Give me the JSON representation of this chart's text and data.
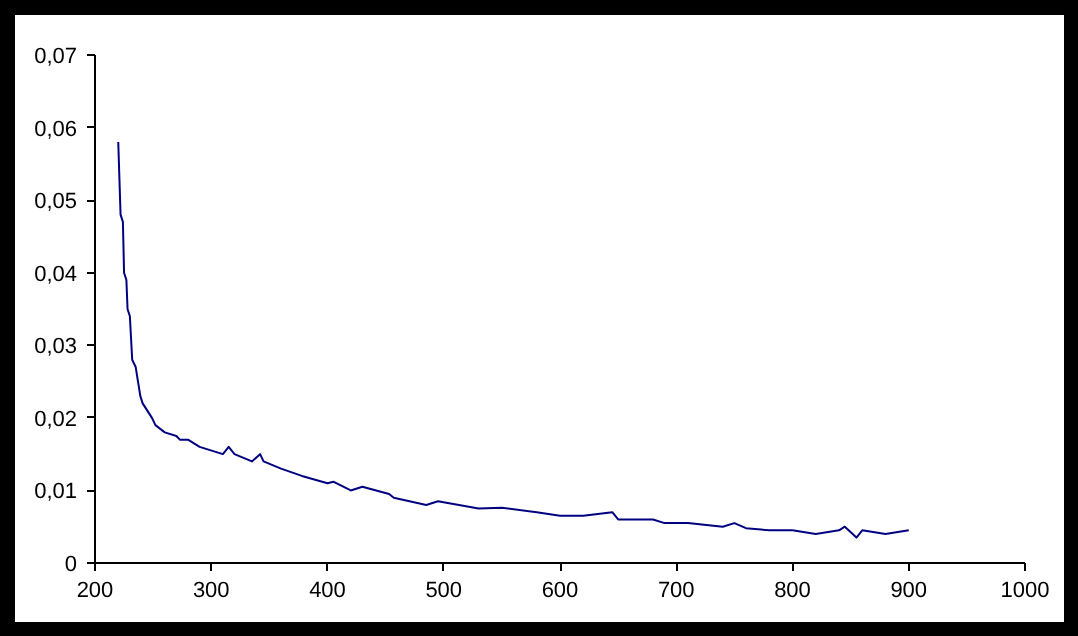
{
  "chart_data": {
    "type": "line",
    "x": [
      220,
      221,
      222,
      224,
      225,
      227,
      228,
      230,
      231,
      232,
      235,
      237,
      239,
      241,
      245,
      249,
      252,
      260,
      270,
      273,
      280,
      290,
      310,
      315,
      320,
      335,
      342,
      345,
      360,
      378,
      400,
      405,
      420,
      430,
      453,
      457,
      485,
      495,
      530,
      550,
      580,
      600,
      620,
      645,
      650,
      680,
      690,
      710,
      740,
      750,
      760,
      780,
      800,
      820,
      840,
      845,
      855,
      860,
      880,
      900
    ],
    "series": [
      {
        "color": "#000080",
        "values": [
          0.058,
          0.053,
          0.048,
          0.047,
          0.04,
          0.039,
          0.035,
          0.034,
          0.031,
          0.028,
          0.027,
          0.025,
          0.023,
          0.022,
          0.021,
          0.02,
          0.019,
          0.018,
          0.0175,
          0.017,
          0.017,
          0.016,
          0.015,
          0.016,
          0.015,
          0.014,
          0.015,
          0.014,
          0.013,
          0.012,
          0.011,
          0.0112,
          0.01,
          0.0105,
          0.0095,
          0.009,
          0.008,
          0.0085,
          0.0075,
          0.0076,
          0.007,
          0.0065,
          0.0065,
          0.007,
          0.006,
          0.006,
          0.0055,
          0.0055,
          0.005,
          0.0055,
          0.0048,
          0.0045,
          0.0045,
          0.004,
          0.0045,
          0.005,
          0.0035,
          0.0045,
          0.004,
          0.0045
        ]
      }
    ],
    "xlim": [
      200,
      1000
    ],
    "ylim": [
      0,
      0.07
    ],
    "xticks": [
      200,
      300,
      400,
      500,
      600,
      700,
      800,
      900,
      1000
    ],
    "yticks": [
      0,
      {
        "value": 0.01,
        "label": "0,01"
      },
      {
        "value": 0.02,
        "label": "0,02"
      },
      {
        "value": 0.03,
        "label": "0,03"
      },
      {
        "value": 0.04,
        "label": "0,04"
      },
      {
        "value": 0.05,
        "label": "0,05"
      },
      {
        "value": 0.06,
        "label": "0,06"
      },
      {
        "value": 0.07,
        "label": "0,07"
      }
    ],
    "grid": false,
    "marker": "none",
    "line_style": "solid"
  }
}
